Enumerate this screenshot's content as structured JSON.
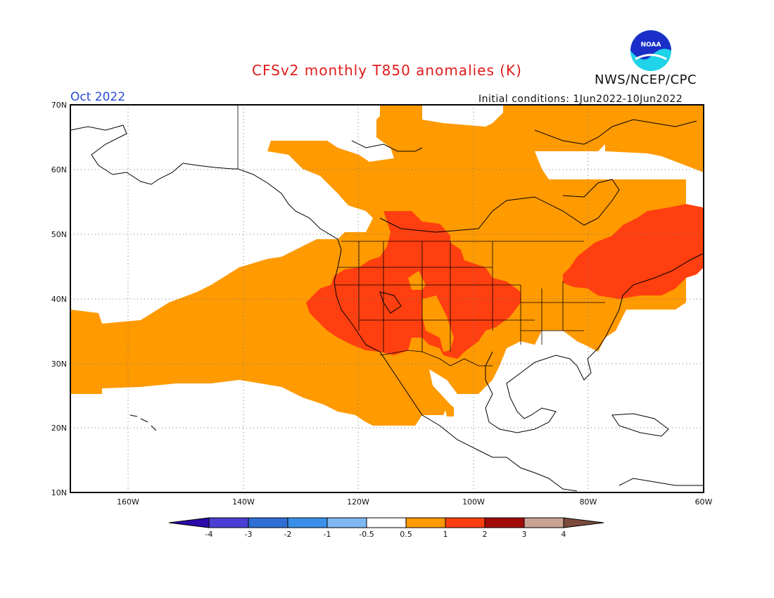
{
  "header": {
    "title": "CFSv2 monthly T850 anomalies (K)",
    "agency": "NWS/NCEP/CPC",
    "month": "Oct 2022",
    "initial_conditions": "Initial conditions: 1Jun2022-10Jun2022",
    "logo_text": "NOAA"
  },
  "axes": {
    "lat_labels": [
      "70N",
      "60N",
      "50N",
      "40N",
      "30N",
      "20N",
      "10N"
    ],
    "lon_labels": [
      "160W",
      "140W",
      "120W",
      "100W",
      "80W",
      "60W"
    ]
  },
  "colorbar": {
    "labels": [
      "-4",
      "-3",
      "-2",
      "-1",
      "-0.5",
      "0.5",
      "1",
      "2",
      "3",
      "4"
    ],
    "colors": [
      "#2b08a8",
      "#4a3ed4",
      "#2f6fd3",
      "#3a8fea",
      "#7fb8f2",
      "#ffffff",
      "#ff9a00",
      "#ff3f0f",
      "#a30b0b",
      "#c9a294",
      "#7a4a3a"
    ]
  },
  "colors": {
    "warm1": "#ff9a00",
    "warm2": "#ff3f0f",
    "title": "#e21b1b",
    "month": "#2a4bd7"
  }
}
